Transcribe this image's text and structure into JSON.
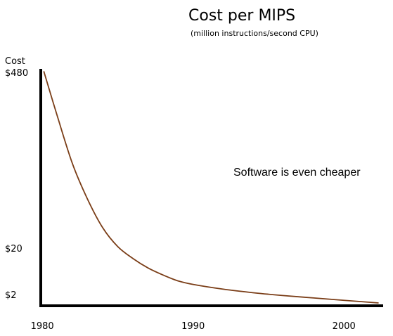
{
  "chart_data": {
    "type": "line",
    "title": "Cost per MIPS",
    "subtitle": "(million instructions/second CPU)",
    "ylabel": "Cost",
    "xlabel": "",
    "annotation": "Software is even cheaper",
    "x_ticks": [
      {
        "value": 1980,
        "label": "1980"
      },
      {
        "value": 1990,
        "label": "1990"
      },
      {
        "value": 2000,
        "label": "2000"
      }
    ],
    "y_ticks": [
      {
        "value": 480,
        "label": "$480"
      },
      {
        "value": 20,
        "label": "$20"
      },
      {
        "value": 2,
        "label": "$2"
      }
    ],
    "xlim": [
      1979.9,
      2002.6
    ],
    "ylim": [
      0,
      1
    ],
    "series": [
      {
        "x": [
          1980.1,
          1981,
          1982,
          1983,
          1984,
          1985,
          1986,
          1987,
          1988,
          1989,
          1990,
          1992,
          1994,
          1996,
          1998,
          2000,
          2002.3
        ],
        "y": [
          0.99,
          0.8,
          0.6,
          0.45,
          0.33,
          0.25,
          0.2,
          0.16,
          0.13,
          0.105,
          0.09,
          0.07,
          0.055,
          0.043,
          0.033,
          0.023,
          0.012
        ]
      }
    ],
    "grid": false,
    "legend": "none",
    "line_color": "#7a3d17",
    "axis_color": "#000000"
  }
}
